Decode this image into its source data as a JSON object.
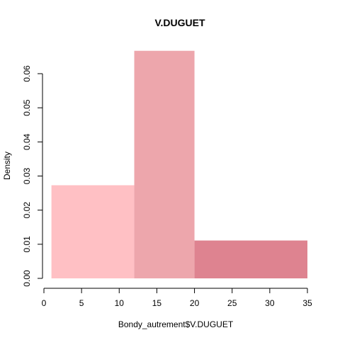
{
  "chart_data": {
    "type": "bar",
    "subtype": "histogram",
    "title": "V.DUGUET",
    "xlabel": "Bondy_autrement$V.DUGUET",
    "ylabel": "Density",
    "xlim": [
      0,
      35
    ],
    "ylim": [
      0,
      0.06
    ],
    "x_ticks": [
      0,
      5,
      10,
      15,
      20,
      25,
      30,
      35
    ],
    "x_tick_labels": [
      "0",
      "5",
      "10",
      "15",
      "20",
      "25",
      "30",
      "35"
    ],
    "y_ticks": [
      0,
      0.01,
      0.02,
      0.03,
      0.04,
      0.05,
      0.06
    ],
    "y_tick_labels": [
      "0.00",
      "0.01",
      "0.02",
      "0.03",
      "0.04",
      "0.05",
      "0.06"
    ],
    "grid": false,
    "bins": [
      {
        "start": 1,
        "end": 12,
        "density": 0.0273,
        "color": "#FFC0C4"
      },
      {
        "start": 12,
        "end": 20,
        "density": 0.0667,
        "color": "#EDA6AC"
      },
      {
        "start": 20,
        "end": 35,
        "density": 0.0111,
        "color": "#DE8390"
      }
    ]
  }
}
